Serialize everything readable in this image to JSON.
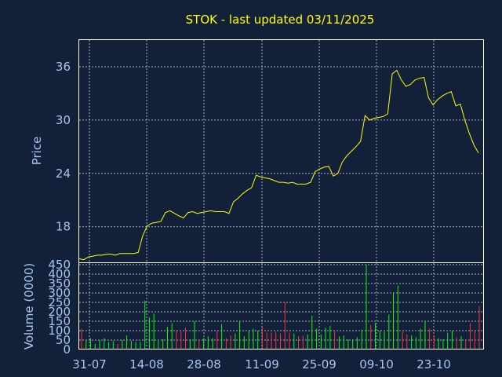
{
  "chart_data": {
    "title": "STOK - last updated 03/11/2025",
    "x_ticks": [
      "31-07",
      "14-08",
      "28-08",
      "11-09",
      "25-09",
      "09-10",
      "23-10"
    ],
    "price_panel": {
      "type": "line",
      "ylabel": "Price",
      "ylim": [
        14,
        39
      ],
      "y_ticks": [
        "18",
        "24",
        "30",
        "36"
      ],
      "line_color": "#ffff00",
      "values": [
        14.4,
        14.3,
        14.6,
        14.7,
        14.8,
        14.8,
        14.9,
        14.9,
        14.8,
        15.0,
        15.0,
        15.0,
        15.0,
        15.1,
        17.0,
        18.1,
        18.4,
        18.5,
        18.6,
        19.6,
        19.8,
        19.5,
        19.2,
        19.0,
        19.6,
        19.7,
        19.5,
        19.6,
        19.7,
        19.8,
        19.7,
        19.7,
        19.7,
        19.5,
        20.8,
        21.2,
        21.7,
        22.1,
        22.4,
        23.8,
        23.6,
        23.5,
        23.4,
        23.2,
        23.0,
        23.0,
        22.9,
        23.0,
        22.8,
        22.8,
        22.8,
        23.0,
        24.2,
        24.5,
        24.7,
        24.8,
        23.7,
        24.0,
        25.3,
        26.0,
        26.5,
        27.0,
        27.6,
        30.5,
        30.0,
        30.2,
        30.3,
        30.4,
        30.7,
        35.2,
        35.6,
        34.5,
        33.8,
        34.0,
        34.5,
        34.7,
        34.8,
        32.5,
        31.7,
        32.3,
        32.7,
        33.0,
        33.2,
        31.6,
        31.8,
        30.0,
        28.5,
        27.2,
        26.3
      ]
    },
    "volume_panel": {
      "type": "bar",
      "ylabel": "Volume (0000)",
      "ylim": [
        0,
        450
      ],
      "y_ticks": [
        "0",
        "50",
        "100",
        "150",
        "200",
        "250",
        "300",
        "350",
        "400",
        "450"
      ],
      "up_color": "#00ff00",
      "down_color": "#ff3030",
      "values": [
        110,
        50,
        60,
        30,
        50,
        60,
        40,
        45,
        30,
        50,
        75,
        45,
        40,
        40,
        260,
        170,
        190,
        45,
        55,
        120,
        140,
        100,
        95,
        115,
        55,
        150,
        55,
        60,
        70,
        60,
        100,
        135,
        60,
        75,
        85,
        150,
        70,
        100,
        110,
        100,
        120,
        90,
        90,
        95,
        85,
        250,
        90,
        85,
        70,
        75,
        80,
        180,
        110,
        80,
        115,
        125,
        100,
        70,
        75,
        55,
        50,
        65,
        105,
        450,
        130,
        140,
        100,
        95,
        185,
        300,
        340,
        95,
        80,
        75,
        65,
        110,
        150,
        110,
        75,
        60,
        55,
        90,
        100,
        65,
        70,
        55,
        140,
        100,
        230
      ],
      "directions": [
        -1,
        1,
        1,
        1,
        1,
        1,
        1,
        1,
        -1,
        1,
        1,
        1,
        1,
        1,
        1,
        1,
        1,
        1,
        1,
        1,
        1,
        -1,
        -1,
        -1,
        1,
        1,
        -1,
        1,
        1,
        1,
        -1,
        1,
        -1,
        -1,
        1,
        1,
        1,
        1,
        1,
        1,
        -1,
        -1,
        -1,
        -1,
        -1,
        -1,
        -1,
        1,
        -1,
        -1,
        1,
        1,
        1,
        1,
        1,
        1,
        -1,
        1,
        1,
        1,
        1,
        1,
        1,
        1,
        -1,
        1,
        1,
        1,
        1,
        1,
        1,
        -1,
        -1,
        1,
        1,
        1,
        1,
        -1,
        -1,
        1,
        1,
        1,
        1,
        -1,
        1,
        -1,
        -1,
        -1,
        -1
      ]
    }
  }
}
